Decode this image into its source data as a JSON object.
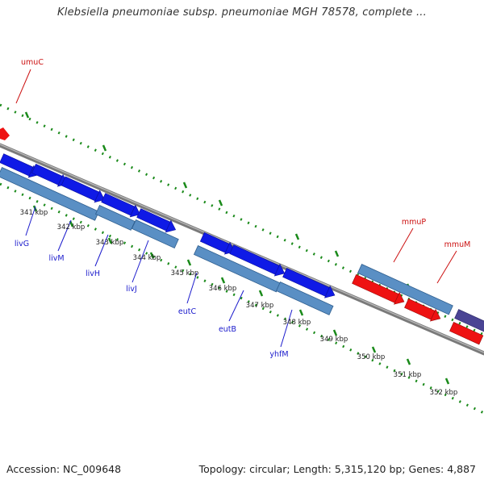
{
  "title": "Klebsiella pneumoniae subsp. pneumoniae MGH 78578, complete ...",
  "footer": {
    "accession": "Accession: NC_009648",
    "summary": "Topology: circular; Length: 5,315,120 bp; Genes: 4,887"
  },
  "colors": {
    "gene_forward": "#0f1ae6",
    "gene_reverse": "#ee1212",
    "cds_bar": "#5a8fc4",
    "rna_feature": "#4a4494",
    "backbone": "#7a7a7a",
    "tick": "#1a8a1a",
    "gene_label": "#1a1acc",
    "special_label": "#cc1111"
  },
  "ticks": [
    "341 kbp",
    "342 kbp",
    "343 kbp",
    "344 kbp",
    "345 kbp",
    "346 kbp",
    "347 kbp",
    "348 kbp",
    "349 kbp",
    "350 kbp",
    "351 kbp",
    "352 kbp"
  ],
  "gene_labels": [
    "livG",
    "livM",
    "livH",
    "livJ",
    "eutC",
    "eutB",
    "yhfM"
  ],
  "special_labels": [
    "umuC",
    "mmuP",
    "mmuM"
  ]
}
